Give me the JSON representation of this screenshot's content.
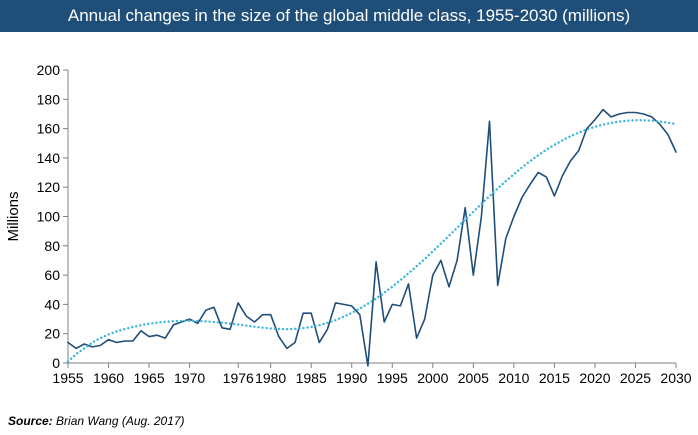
{
  "chart_data": {
    "type": "line",
    "title": "Annual changes in the size of the global middle class, 1955-2030 (millions)",
    "xlabel": "",
    "ylabel": "Millions",
    "xlim": [
      1955,
      2030
    ],
    "ylim": [
      0,
      200
    ],
    "x_ticks": [
      "1955",
      "1960",
      "1965",
      "1970",
      "1976",
      "1980",
      "1985",
      "1990",
      "1995",
      "2000",
      "2005",
      "2010",
      "2015",
      "2020",
      "2025",
      "2030"
    ],
    "y_ticks": [
      "0",
      "20",
      "40",
      "60",
      "80",
      "100",
      "120",
      "140",
      "160",
      "180",
      "200"
    ],
    "grid": "none",
    "legend": "none",
    "series": [
      {
        "style": "solid",
        "color": "#1f4e79",
        "x": [
          1955,
          1956,
          1957,
          1958,
          1959,
          1960,
          1961,
          1962,
          1963,
          1964,
          1965,
          1966,
          1967,
          1968,
          1969,
          1970,
          1971,
          1972,
          1973,
          1974,
          1975,
          1976,
          1977,
          1978,
          1979,
          1980,
          1981,
          1982,
          1983,
          1984,
          1985,
          1986,
          1987,
          1988,
          1989,
          1990,
          1991,
          1992,
          1993,
          1994,
          1995,
          1996,
          1997,
          1998,
          1999,
          2000,
          2001,
          2002,
          2003,
          2004,
          2005,
          2006,
          2007,
          2008,
          2009,
          2010,
          2011,
          2012,
          2013,
          2014,
          2015,
          2016,
          2017,
          2018,
          2019,
          2020,
          2021,
          2022,
          2023,
          2024,
          2025,
          2026,
          2027,
          2028,
          2029,
          2030
        ],
        "y": [
          14,
          10,
          13,
          11,
          12,
          16,
          14,
          15,
          15,
          22,
          18,
          19,
          17,
          26,
          28,
          30,
          27,
          36,
          38,
          24,
          23,
          41,
          32,
          28,
          33,
          33,
          18,
          10,
          14,
          34,
          34,
          14,
          23,
          41,
          40,
          39,
          33,
          -2,
          69,
          28,
          40,
          39,
          54,
          17,
          30,
          60,
          70,
          52,
          70,
          106,
          60,
          100,
          165,
          53,
          85,
          100,
          113,
          122,
          130,
          127,
          114,
          128,
          138,
          145,
          160,
          166,
          173,
          168,
          170,
          171,
          171,
          170,
          168,
          163,
          156,
          144
        ]
      },
      {
        "style": "dotted",
        "color": "#3fb6dd",
        "x": [
          1955,
          1956,
          1957,
          1958,
          1959,
          1960,
          1961,
          1962,
          1963,
          1964,
          1965,
          1966,
          1967,
          1968,
          1969,
          1970,
          1971,
          1972,
          1973,
          1974,
          1975,
          1976,
          1977,
          1978,
          1979,
          1980,
          1981,
          1982,
          1983,
          1984,
          1985,
          1986,
          1987,
          1988,
          1989,
          1990,
          1991,
          1992,
          1993,
          1994,
          1995,
          1996,
          1997,
          1998,
          1999,
          2000,
          2001,
          2002,
          2003,
          2004,
          2005,
          2006,
          2007,
          2008,
          2009,
          2010,
          2011,
          2012,
          2013,
          2014,
          2015,
          2016,
          2017,
          2018,
          2019,
          2020,
          2021,
          2022,
          2023,
          2024,
          2025,
          2026,
          2027,
          2028,
          2029,
          2030
        ],
        "y": [
          1,
          6,
          10,
          14,
          17,
          19.5,
          21.5,
          23.2,
          24.6,
          25.8,
          26.8,
          27.5,
          28.1,
          28.5,
          28.7,
          28.8,
          28.7,
          28.4,
          28,
          27.5,
          26.9,
          26.2,
          25.5,
          24.8,
          24.1,
          23.6,
          23.2,
          23.1,
          23.3,
          23.8,
          24.6,
          25.8,
          27.4,
          29.3,
          31.6,
          34.2,
          37.1,
          40.4,
          44,
          47.9,
          52.1,
          56.5,
          61.2,
          66,
          71,
          76.2,
          81.5,
          86.9,
          92.3,
          97.8,
          103.2,
          108.6,
          113.9,
          119.1,
          124.1,
          128.9,
          133.5,
          137.8,
          141.8,
          145.5,
          148.9,
          152,
          154.8,
          157.3,
          159.4,
          161.2,
          162.7,
          163.9,
          164.8,
          165.4,
          165.7,
          165.7,
          165.4,
          164.8,
          164,
          163
        ]
      }
    ]
  },
  "source": {
    "label": "Source:",
    "text": "Brian Wang (Aug. 2017)"
  },
  "colors": {
    "title_bar": "#1f4e79",
    "axis": "#808080"
  }
}
